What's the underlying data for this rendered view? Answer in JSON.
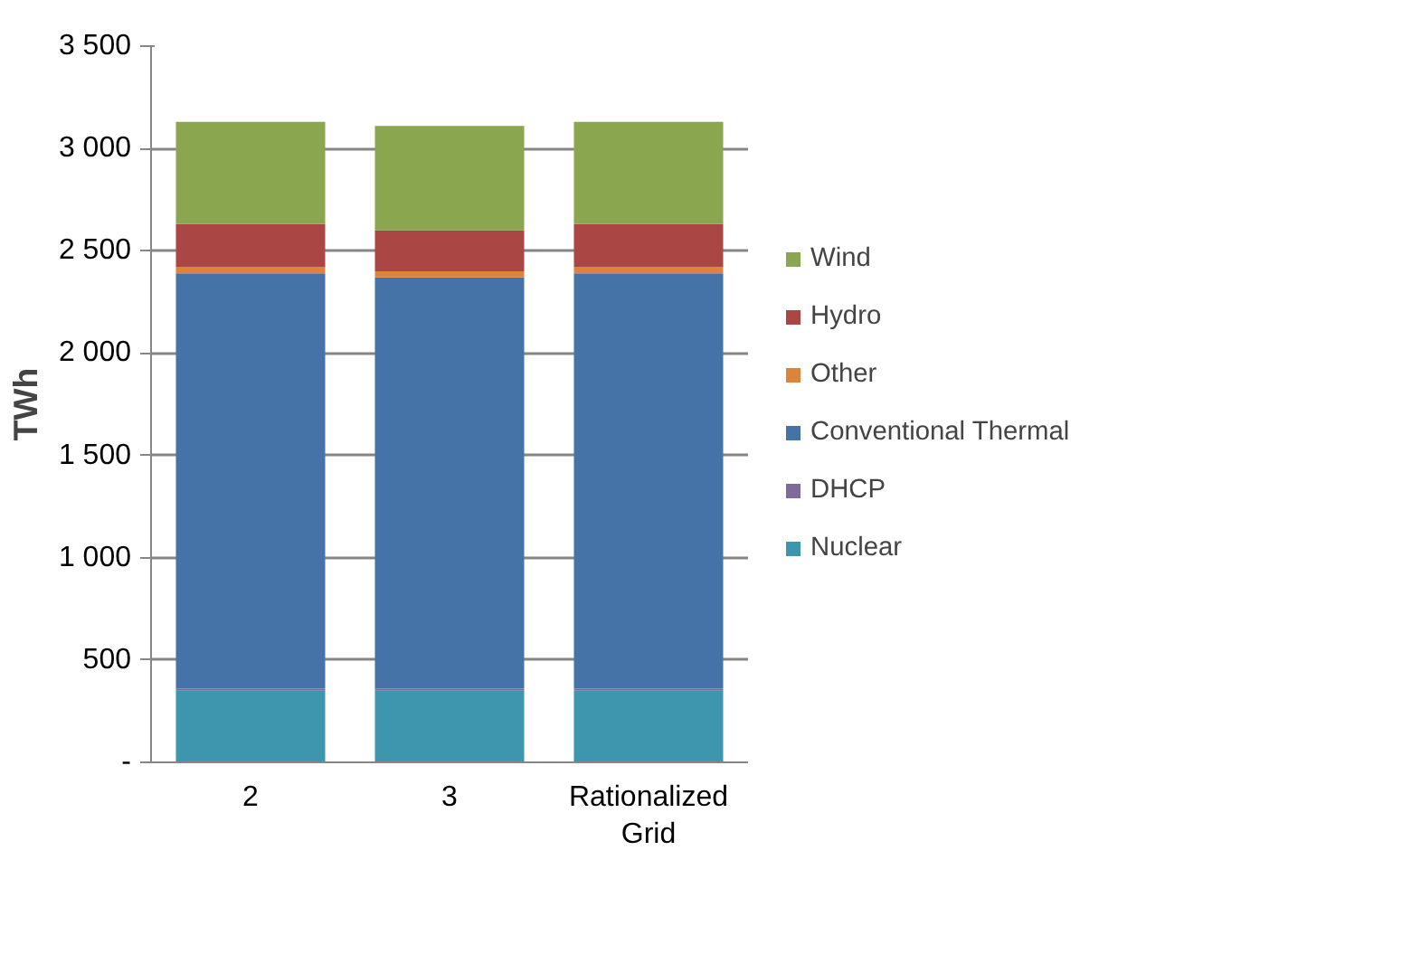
{
  "chart_data": {
    "type": "bar",
    "stacked": true,
    "ylabel": "TWh",
    "categories": [
      "2",
      "3",
      "Rationalized Grid"
    ],
    "series": [
      {
        "name": "Nuclear",
        "color": "#3d96ae",
        "values": [
          350,
          350,
          350
        ]
      },
      {
        "name": "DHCP",
        "color": "#80699b",
        "values": [
          10,
          10,
          10
        ]
      },
      {
        "name": "Conventional Thermal",
        "color": "#4572a7",
        "values": [
          2030,
          2010,
          2030
        ]
      },
      {
        "name": "Other",
        "color": "#db843d",
        "values": [
          30,
          30,
          30
        ]
      },
      {
        "name": "Hydro",
        "color": "#aa4644",
        "values": [
          210,
          200,
          210
        ]
      },
      {
        "name": "Wind",
        "color": "#8aa64e",
        "values": [
          500,
          510,
          500
        ]
      }
    ],
    "ylim": [
      0,
      3500
    ],
    "yticks": [
      {
        "value": 0,
        "label": "-"
      },
      {
        "value": 500,
        "label": "500"
      },
      {
        "value": 1000,
        "label": "1 000"
      },
      {
        "value": 1500,
        "label": "1 500"
      },
      {
        "value": 2000,
        "label": "2 000"
      },
      {
        "value": 2500,
        "label": "2 500"
      },
      {
        "value": 3000,
        "label": "3 000"
      },
      {
        "value": 3500,
        "label": "3 500"
      }
    ],
    "grid": "y",
    "legend": "right"
  }
}
